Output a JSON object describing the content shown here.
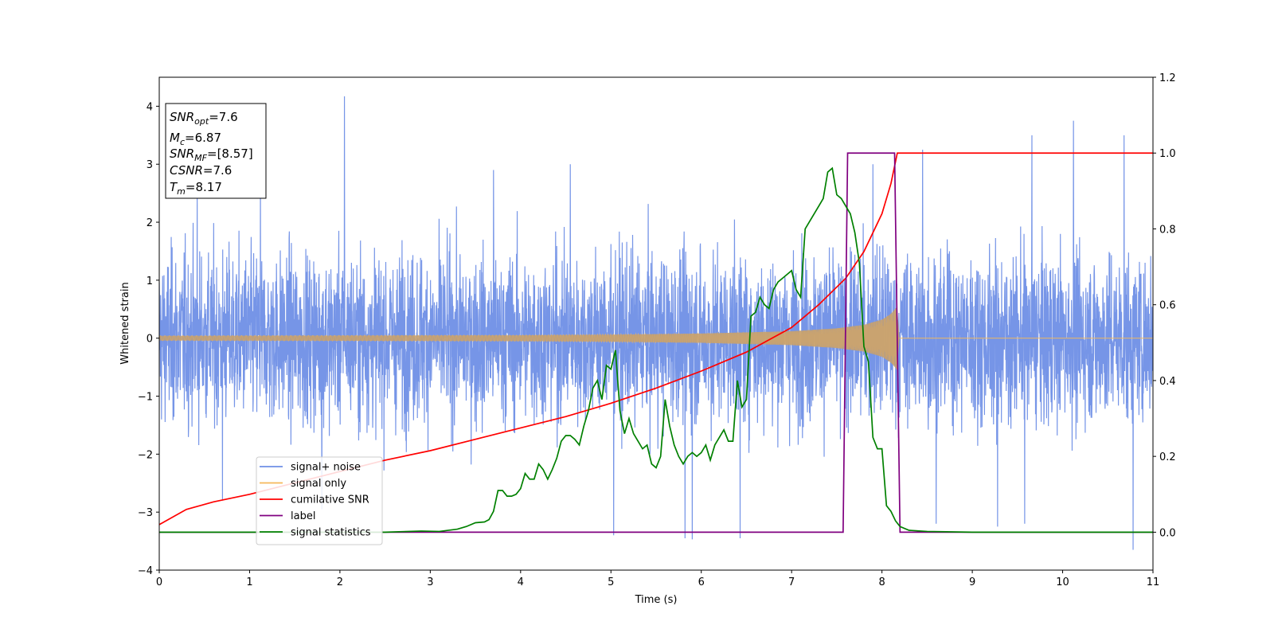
{
  "chart_data": {
    "type": "line",
    "title": "",
    "xlabel": "Time (s)",
    "ylabel": "Whitened strain",
    "y2label": "",
    "xlim": [
      0,
      11
    ],
    "ylim": [
      -4,
      4.5
    ],
    "y2lim": [
      -0.1,
      1.2
    ],
    "x_ticks": [
      0,
      1,
      2,
      3,
      4,
      5,
      6,
      7,
      8,
      9,
      10,
      11
    ],
    "y_ticks": [
      -4,
      -3,
      -2,
      -1,
      0,
      1,
      2,
      3,
      4
    ],
    "y_tick_labels": [
      "−4",
      "−3",
      "−2",
      "−1",
      "0",
      "1",
      "2",
      "3",
      "4"
    ],
    "y2_ticks": [
      0.0,
      0.2,
      0.4,
      0.6,
      0.8,
      1.0,
      1.2
    ],
    "y2_tick_labels": [
      "0.0",
      "0.2",
      "0.4",
      "0.6",
      "0.8",
      "1.0",
      "1.2"
    ],
    "grid": false,
    "legend_position": "lower-left",
    "annotation": {
      "lines": [
        {
          "main": "SNR",
          "sub": "opt",
          "value": "=7.6"
        },
        {
          "main": "M",
          "sub": "c",
          "value": "=6.87"
        },
        {
          "main": "SNR",
          "sub": "MF",
          "value": "=[8.57]"
        },
        {
          "main": "CSNR",
          "sub": "",
          "value": "=7.6"
        },
        {
          "main": "T",
          "sub": "m",
          "value": "=8.17"
        }
      ]
    },
    "series": [
      {
        "name": "signal+ noise",
        "color": "#6f8fe6",
        "axis": "left",
        "description_note_kind": "noise",
        "envelope": {
          "x": [
            0,
            11
          ],
          "typical_min": -2.3,
          "typical_max": 2.3
        },
        "spikes": [
          {
            "x": 2.05,
            "y": 4.17
          },
          {
            "x": 0.42,
            "y": 2.5
          },
          {
            "x": 1.12,
            "y": 2.7
          },
          {
            "x": 3.7,
            "y": 2.9
          },
          {
            "x": 4.55,
            "y": 3.0
          },
          {
            "x": 7.9,
            "y": 3.0
          },
          {
            "x": 8.45,
            "y": 3.25
          },
          {
            "x": 9.66,
            "y": 3.5
          },
          {
            "x": 10.12,
            "y": 3.75
          },
          {
            "x": 10.68,
            "y": 3.5
          },
          {
            "x": 5.03,
            "y": -3.4
          },
          {
            "x": 5.82,
            "y": -3.45
          },
          {
            "x": 5.9,
            "y": -3.47
          },
          {
            "x": 6.43,
            "y": -3.45
          },
          {
            "x": 10.78,
            "y": -3.65
          },
          {
            "x": 9.28,
            "y": -3.25
          },
          {
            "x": 9.58,
            "y": -3.2
          },
          {
            "x": 8.6,
            "y": -3.2
          },
          {
            "x": 1.8,
            "y": -2.95
          },
          {
            "x": 0.7,
            "y": -2.8
          }
        ]
      },
      {
        "name": "signal only",
        "color": "#f5b85a",
        "axis": "left",
        "chirp_amplitude": {
          "x": [
            0,
            2,
            4,
            5,
            6,
            7,
            7.5,
            7.8,
            8.0,
            8.1,
            8.17,
            8.18,
            11
          ],
          "y": [
            0.04,
            0.045,
            0.05,
            0.06,
            0.08,
            0.12,
            0.17,
            0.23,
            0.32,
            0.42,
            0.55,
            0.0,
            0.0
          ]
        }
      },
      {
        "name": "cumilative SNR",
        "color": "#ff0000",
        "axis": "right",
        "x": [
          0,
          0.3,
          0.6,
          1,
          1.5,
          2,
          2.5,
          3,
          3.5,
          4,
          4.5,
          5,
          5.5,
          6,
          6.5,
          7,
          7.3,
          7.6,
          7.8,
          8.0,
          8.1,
          8.17,
          11
        ],
        "y": [
          0.02,
          0.06,
          0.08,
          0.1,
          0.13,
          0.16,
          0.19,
          0.215,
          0.245,
          0.275,
          0.305,
          0.34,
          0.38,
          0.425,
          0.475,
          0.54,
          0.6,
          0.67,
          0.74,
          0.84,
          0.92,
          1.0,
          1.0
        ]
      },
      {
        "name": "label",
        "color": "#800080",
        "axis": "right",
        "x": [
          0,
          7.57,
          7.62,
          8.14,
          8.2,
          11
        ],
        "y": [
          0,
          0,
          1,
          1,
          0,
          0
        ]
      },
      {
        "name": "signal statistics",
        "color": "#008000",
        "axis": "right",
        "x": [
          0,
          1,
          2,
          2.5,
          2.9,
          3.1,
          3.3,
          3.4,
          3.5,
          3.6,
          3.65,
          3.7,
          3.75,
          3.8,
          3.85,
          3.9,
          3.95,
          4.0,
          4.05,
          4.1,
          4.15,
          4.2,
          4.25,
          4.3,
          4.35,
          4.4,
          4.45,
          4.5,
          4.55,
          4.6,
          4.65,
          4.7,
          4.75,
          4.8,
          4.85,
          4.9,
          4.95,
          5.0,
          5.05,
          5.1,
          5.15,
          5.2,
          5.25,
          5.3,
          5.35,
          5.4,
          5.45,
          5.5,
          5.55,
          5.6,
          5.65,
          5.7,
          5.75,
          5.8,
          5.85,
          5.9,
          5.95,
          6.0,
          6.05,
          6.1,
          6.15,
          6.2,
          6.25,
          6.3,
          6.35,
          6.4,
          6.45,
          6.5,
          6.55,
          6.6,
          6.65,
          6.7,
          6.75,
          6.8,
          6.85,
          6.9,
          6.95,
          7.0,
          7.05,
          7.1,
          7.15,
          7.2,
          7.25,
          7.3,
          7.35,
          7.4,
          7.45,
          7.5,
          7.55,
          7.6,
          7.65,
          7.7,
          7.75,
          7.8,
          7.85,
          7.9,
          7.95,
          8.0,
          8.05,
          8.1,
          8.15,
          8.2,
          8.3,
          8.5,
          9,
          10,
          11
        ],
        "y": [
          0,
          0,
          0,
          0,
          0.003,
          0.002,
          0.008,
          0.015,
          0.025,
          0.027,
          0.033,
          0.055,
          0.11,
          0.11,
          0.095,
          0.095,
          0.1,
          0.115,
          0.155,
          0.14,
          0.14,
          0.18,
          0.165,
          0.14,
          0.165,
          0.195,
          0.24,
          0.255,
          0.255,
          0.245,
          0.23,
          0.28,
          0.32,
          0.38,
          0.4,
          0.35,
          0.44,
          0.43,
          0.48,
          0.32,
          0.26,
          0.3,
          0.26,
          0.24,
          0.22,
          0.23,
          0.18,
          0.17,
          0.2,
          0.35,
          0.28,
          0.23,
          0.2,
          0.18,
          0.2,
          0.21,
          0.2,
          0.21,
          0.23,
          0.19,
          0.23,
          0.25,
          0.27,
          0.24,
          0.24,
          0.4,
          0.33,
          0.35,
          0.57,
          0.58,
          0.62,
          0.6,
          0.59,
          0.64,
          0.66,
          0.67,
          0.68,
          0.69,
          0.64,
          0.62,
          0.8,
          0.82,
          0.84,
          0.86,
          0.88,
          0.95,
          0.96,
          0.89,
          0.88,
          0.86,
          0.84,
          0.79,
          0.71,
          0.49,
          0.45,
          0.25,
          0.22,
          0.22,
          0.07,
          0.055,
          0.03,
          0.015,
          0.005,
          0.002,
          0.0,
          0.0,
          0.0
        ]
      }
    ]
  }
}
